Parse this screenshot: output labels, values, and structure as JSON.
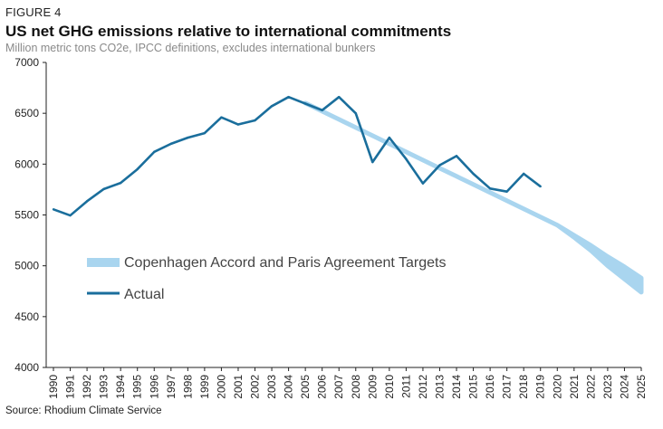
{
  "figure_label": "FIGURE 4",
  "source": "Source: Rhodium Climate Service",
  "chart_data": {
    "type": "line",
    "title": "US net GHG emissions relative to international commitments",
    "subtitle": "Million metric tons CO2e, IPCC definitions, excludes international bunkers",
    "xlabel": "",
    "ylabel": "",
    "ylim": [
      4000,
      7000
    ],
    "y_ticks": [
      4000,
      4500,
      5000,
      5500,
      6000,
      6500,
      7000
    ],
    "x_ticks": [
      "1990",
      "1991",
      "1992",
      "1993",
      "1994",
      "1995",
      "1996",
      "1997",
      "1998",
      "1999",
      "2000",
      "2001",
      "2002",
      "2003",
      "2004",
      "2005",
      "2006",
      "2007",
      "2008",
      "2009",
      "2010",
      "2011",
      "2012",
      "2013",
      "2014",
      "2015",
      "2016",
      "2017",
      "2018",
      "2019",
      "2020",
      "2021",
      "2022",
      "2023",
      "2024",
      "2025"
    ],
    "legend": {
      "position": "center-left",
      "entries": [
        {
          "label": "Copenhagen Accord and Paris Agreement Targets",
          "color": "#a9d5ef",
          "type": "band"
        },
        {
          "label": "Actual",
          "color": "#1a6e9c",
          "type": "line"
        }
      ]
    },
    "series": [
      {
        "name": "Actual",
        "color": "#1a6e9c",
        "x": [
          1990,
          1991,
          1992,
          1993,
          1994,
          1995,
          1996,
          1997,
          1998,
          1999,
          2000,
          2001,
          2002,
          2003,
          2004,
          2005,
          2006,
          2007,
          2008,
          2009,
          2010,
          2011,
          2012,
          2013,
          2014,
          2015,
          2016,
          2017,
          2018,
          2019
        ],
        "values": [
          5555,
          5495,
          5635,
          5755,
          5815,
          5950,
          6120,
          6200,
          6260,
          6305,
          6460,
          6390,
          6430,
          6570,
          6660,
          6595,
          6530,
          6660,
          6500,
          6020,
          6260,
          6050,
          5810,
          5990,
          6080,
          5905,
          5760,
          5730,
          5905,
          5780
        ]
      },
      {
        "name": "Copenhagen Accord and Paris Agreement Targets",
        "color": "#a9d5ef",
        "type": "band",
        "x": [
          2005,
          2006,
          2007,
          2008,
          2009,
          2010,
          2011,
          2012,
          2013,
          2014,
          2015,
          2016,
          2017,
          2018,
          2019,
          2020,
          2021,
          2022,
          2023,
          2024,
          2025
        ],
        "upper": [
          6600,
          6520,
          6440,
          6360,
          6280,
          6200,
          6120,
          6040,
          5960,
          5880,
          5800,
          5720,
          5640,
          5560,
          5480,
          5400,
          5300,
          5200,
          5090,
          4990,
          4880
        ],
        "lower": [
          6600,
          6520,
          6440,
          6360,
          6280,
          6200,
          6120,
          6040,
          5960,
          5880,
          5800,
          5720,
          5640,
          5560,
          5480,
          5400,
          5280,
          5150,
          5000,
          4870,
          4740
        ]
      }
    ]
  }
}
